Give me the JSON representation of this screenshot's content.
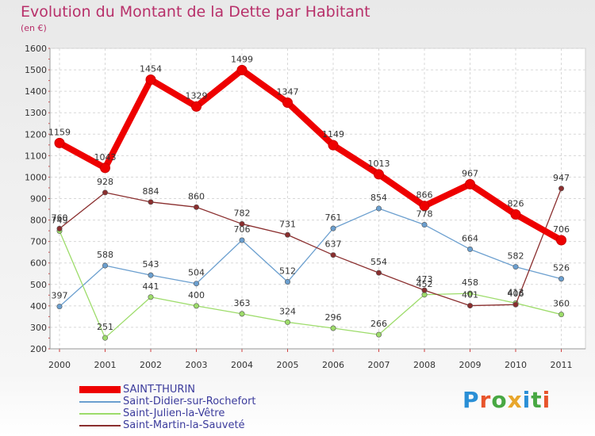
{
  "title": "Evolution du Montant de la Dette par Habitant",
  "subtitle": "(en €)",
  "brand": {
    "text": "Proxiti",
    "letter_colors": [
      "#2a8fd6",
      "#e8542b",
      "#48a843",
      "#e8a62b",
      "#2a8fd6",
      "#48a843",
      "#e8542b"
    ]
  },
  "chart_data": {
    "type": "line",
    "x": [
      "2000",
      "2001",
      "2002",
      "2003",
      "2004",
      "2005",
      "2006",
      "2007",
      "2008",
      "2009",
      "2010",
      "2011"
    ],
    "ylim": [
      200,
      1600
    ],
    "yticks": [
      "200",
      "300",
      "400",
      "500",
      "600",
      "700",
      "800",
      "900",
      "1000",
      "1100",
      "1200",
      "1300",
      "1400",
      "1500",
      "1600"
    ],
    "grid": true,
    "legend": "bottom-left",
    "series": [
      {
        "name": "SAINT-THURIN",
        "color": "#ee0000",
        "emphasis": true,
        "values": [
          1159,
          1043,
          1454,
          1329,
          1499,
          1347,
          1149,
          1013,
          866,
          967,
          826,
          706
        ],
        "labels": [
          "1159",
          "1043",
          "1454",
          "1329",
          "1499",
          "1347",
          "1149",
          "1013",
          "866",
          "967",
          "826",
          "706"
        ]
      },
      {
        "name": "Saint-Didier-sur-Rochefort",
        "color": "#6b9fcf",
        "values": [
          397,
          588,
          543,
          504,
          706,
          512,
          761,
          854,
          778,
          664,
          582,
          526
        ],
        "labels": [
          "397",
          "588",
          "543",
          "504",
          "706",
          "512",
          "761",
          "854",
          "778",
          "664",
          "582",
          "526"
        ]
      },
      {
        "name": "Saint-Julien-la-Vêtre",
        "color": "#9ddc6a",
        "values": [
          749,
          251,
          441,
          400,
          363,
          324,
          296,
          266,
          452,
          458,
          413,
          360
        ],
        "labels": [
          "749",
          "251",
          "441",
          "400",
          "363",
          "324",
          "296",
          "266",
          "452",
          "458",
          "413",
          "360"
        ]
      },
      {
        "name": "Saint-Martin-la-Sauveté",
        "color": "#8a2e2e",
        "values": [
          760,
          928,
          884,
          860,
          782,
          731,
          637,
          554,
          473,
          401,
          406,
          947
        ],
        "labels": [
          "760",
          "928",
          "884",
          "860",
          "782",
          "731",
          "637",
          "554",
          "473",
          "401",
          "406",
          "947"
        ]
      }
    ]
  }
}
